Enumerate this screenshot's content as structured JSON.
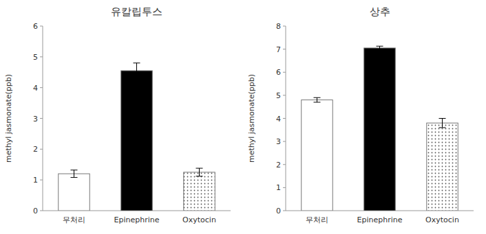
{
  "chart_data": [
    {
      "type": "bar",
      "title": "유칼립투스",
      "y_label": "methyl jasmonate(ppb)",
      "categories": [
        "무처리",
        "Epinephrine",
        "Oxytocin"
      ],
      "values": [
        1.2,
        4.55,
        1.25
      ],
      "errors": [
        0.12,
        0.25,
        0.13
      ],
      "colors": [
        "#ffffff",
        "#000000",
        "#ffffff"
      ],
      "ylim": [
        0,
        6
      ],
      "yticks": [
        0,
        1,
        2,
        3,
        4,
        5,
        6
      ],
      "grid": false
    },
    {
      "type": "bar",
      "title": "상추",
      "y_label": "methyl jasmonate(ppb)",
      "categories": [
        "무처리",
        "Epinephrine",
        "Oxytocin"
      ],
      "values": [
        4.8,
        7.05,
        3.8
      ],
      "errors": [
        0.1,
        0.08,
        0.2
      ],
      "colors": [
        "#ffffff",
        "#000000",
        "#ffffff"
      ],
      "ylim": [
        0,
        8
      ],
      "yticks": [
        0,
        1,
        2,
        3,
        4,
        5,
        6,
        7,
        8
      ],
      "grid": false
    }
  ]
}
